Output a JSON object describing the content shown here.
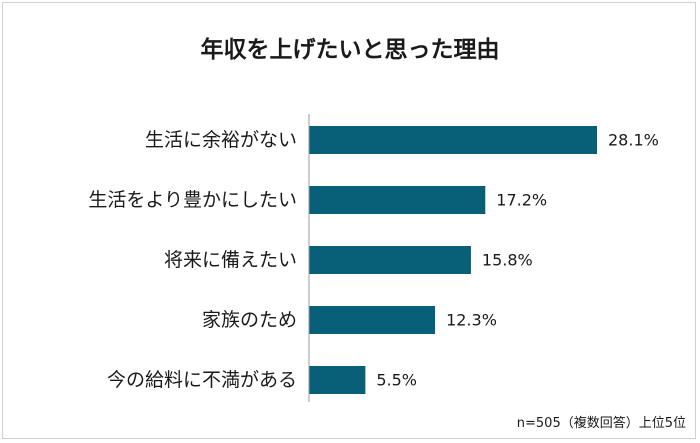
{
  "title": "年収を上げたいと思った理由",
  "note": "n=505（複数回答）上位5位",
  "colors": {
    "bar": "#076078",
    "axis": "#9a9a9a"
  },
  "chart_data": {
    "type": "bar",
    "orientation": "horizontal",
    "title": "年収を上げたいと思った理由",
    "categories": [
      "生活に余裕がない",
      "生活をより豊かにしたい",
      "将来に備えたい",
      "家族のため",
      "今の給料に不満がある"
    ],
    "values": [
      28.1,
      17.2,
      15.8,
      12.3,
      5.5
    ],
    "value_labels": [
      "28.1%",
      "17.2%",
      "15.8%",
      "12.3%",
      "5.5%"
    ],
    "unit": "%",
    "xlim": [
      0,
      30
    ],
    "grid": false,
    "legend": "none"
  }
}
